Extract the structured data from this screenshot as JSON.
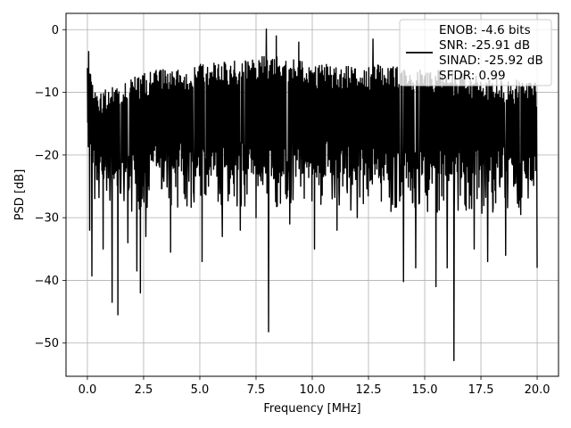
{
  "chart_data": {
    "type": "line",
    "xlabel": "Frequency [MHz]",
    "ylabel": "PSD [dB]",
    "xlim": [
      -0.95,
      20.95
    ],
    "ylim": [
      -55.3,
      2.6
    ],
    "xticks": [
      0.0,
      2.5,
      5.0,
      7.5,
      10.0,
      12.5,
      15.0,
      17.5,
      20.0
    ],
    "xtick_labels": [
      "0.0",
      "2.5",
      "5.0",
      "7.5",
      "10.0",
      "12.5",
      "15.0",
      "17.5",
      "20.0"
    ],
    "yticks": [
      0,
      -10,
      -20,
      -30,
      -40,
      -50
    ],
    "ytick_labels": [
      "0",
      "−10",
      "−20",
      "−30",
      "−40",
      "−50"
    ],
    "grid": true,
    "legend": {
      "placement": "top-right",
      "entries": [
        "ENOB: -4.6 bits",
        "SNR: -25.91 dB",
        "SINAD: -25.92 dB",
        "SFDR: 0.99"
      ]
    },
    "series": [
      {
        "color": "#000000",
        "x_range": [
          0.0,
          20.0
        ],
        "envelope": {
          "x": [
            0.0,
            0.1,
            0.3,
            0.5,
            1.0,
            1.5,
            2.0,
            2.5,
            3.0,
            4.0,
            5.0,
            6.0,
            7.0,
            7.5,
            8.0,
            9.0,
            10.0,
            11.0,
            12.0,
            13.0,
            14.0,
            15.0,
            16.0,
            17.0,
            18.0,
            19.0,
            20.0
          ],
          "upper": [
            -3.5,
            -6.0,
            -9.5,
            -10.5,
            -9.0,
            -8.0,
            -7.5,
            -7.0,
            -6.5,
            -6.0,
            -5.5,
            -5.0,
            -5.0,
            -4.5,
            -4.0,
            -4.5,
            -5.5,
            -5.5,
            -6.0,
            -5.5,
            -6.0,
            -6.5,
            -6.5,
            -7.0,
            -7.5,
            -8.0,
            -8.5
          ],
          "lower": [
            -18.0,
            -22.0,
            -24.0,
            -24.0,
            -24.5,
            -24.0,
            -24.0,
            -24.0,
            -23.5,
            -23.5,
            -23.5,
            -23.5,
            -23.5,
            -23.5,
            -23.5,
            -23.5,
            -23.5,
            -23.5,
            -24.0,
            -24.0,
            -24.0,
            -24.0,
            -24.5,
            -24.5,
            -24.5,
            -24.5,
            -25.0
          ]
        },
        "spikes": [
          {
            "x": 0.1,
            "y": -32.0
          },
          {
            "x": 0.2,
            "y": -39.3
          },
          {
            "x": 0.7,
            "y": -35.0
          },
          {
            "x": 1.1,
            "y": -43.5
          },
          {
            "x": 1.35,
            "y": -45.5
          },
          {
            "x": 1.8,
            "y": -34.0
          },
          {
            "x": 2.2,
            "y": -38.5
          },
          {
            "x": 2.35,
            "y": -42.0
          },
          {
            "x": 2.6,
            "y": -33.0
          },
          {
            "x": 3.7,
            "y": -35.5
          },
          {
            "x": 5.1,
            "y": -37.0
          },
          {
            "x": 6.0,
            "y": -33.0
          },
          {
            "x": 6.8,
            "y": -32.0
          },
          {
            "x": 7.5,
            "y": -30.0
          },
          {
            "x": 8.05,
            "y": -48.2
          },
          {
            "x": 9.0,
            "y": -31.0
          },
          {
            "x": 10.1,
            "y": -35.0
          },
          {
            "x": 11.1,
            "y": -32.0
          },
          {
            "x": 12.0,
            "y": -30.0
          },
          {
            "x": 13.5,
            "y": -29.0
          },
          {
            "x": 14.05,
            "y": -40.2
          },
          {
            "x": 14.6,
            "y": -38.0
          },
          {
            "x": 15.5,
            "y": -41.0
          },
          {
            "x": 16.0,
            "y": -38.0
          },
          {
            "x": 16.3,
            "y": -52.8
          },
          {
            "x": 17.2,
            "y": -35.0
          },
          {
            "x": 17.8,
            "y": -37.0
          },
          {
            "x": 18.6,
            "y": -36.0
          },
          {
            "x": 20.0,
            "y": -38.0
          }
        ],
        "peaks": [
          {
            "x": 0.05,
            "y": -3.5
          },
          {
            "x": 7.95,
            "y": 0.1
          },
          {
            "x": 8.4,
            "y": -1.0
          },
          {
            "x": 9.4,
            "y": -2.0
          },
          {
            "x": 12.7,
            "y": -1.5
          }
        ]
      }
    ]
  }
}
